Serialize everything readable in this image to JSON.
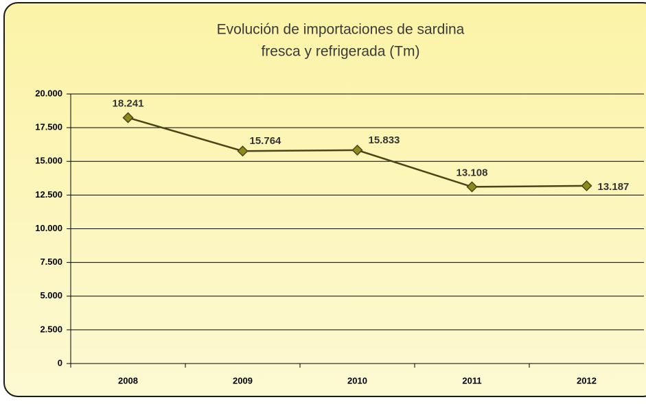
{
  "chart_data": {
    "type": "line",
    "title": [
      "Evolución de importaciones de sardina",
      "fresca y refrigerada (Tm)"
    ],
    "categories": [
      "2008",
      "2009",
      "2010",
      "2011",
      "2012"
    ],
    "series": [
      {
        "name": "Importaciones",
        "color": "#4a4416",
        "marker_color": "#8c8a1c",
        "values": [
          18241,
          15764,
          15833,
          13108,
          13187
        ],
        "value_labels": [
          "18.241",
          "15.764",
          "15.833",
          "13.108",
          "13.187"
        ]
      }
    ],
    "ylim": [
      0,
      20000
    ],
    "yticks": [
      0,
      {
        "value": 2500,
        "label": "2.500"
      },
      {
        "value": 5000,
        "label": "5.000"
      },
      {
        "value": 7500,
        "label": "7.500"
      },
      {
        "value": 10000,
        "label": "10.000"
      },
      {
        "value": 12500,
        "label": "12.500"
      },
      {
        "value": 15000,
        "label": "15.000"
      },
      {
        "value": 17500,
        "label": "17.500"
      },
      {
        "value": 20000,
        "label": "20.000"
      }
    ],
    "grid": true
  }
}
